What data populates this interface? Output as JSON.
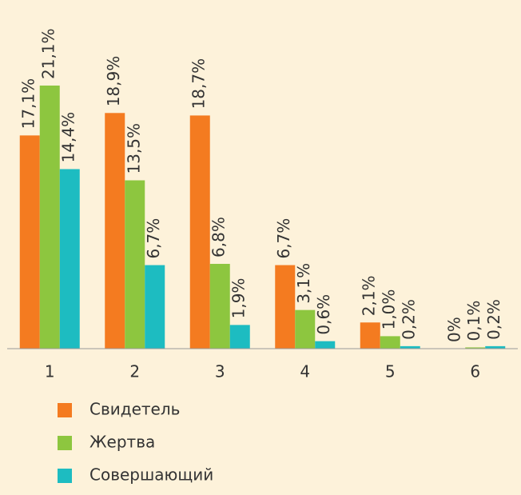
{
  "chart_data": {
    "type": "bar",
    "categories": [
      "1",
      "2",
      "3",
      "4",
      "5",
      "6"
    ],
    "series": [
      {
        "name": "Свидетель",
        "color": "#f47b20",
        "values": [
          17.1,
          18.9,
          18.7,
          6.7,
          2.1,
          0
        ],
        "value_labels": [
          "17,1%",
          "18,9%",
          "18,7%",
          "6,7%",
          "2,1%",
          "0%"
        ]
      },
      {
        "name": "Жертва",
        "color": "#8dc63f",
        "values": [
          21.1,
          13.5,
          6.8,
          3.1,
          1.0,
          0.1
        ],
        "value_labels": [
          "21,1%",
          "13,5%",
          "6,8%",
          "3,1%",
          "1,0%",
          "0,1%"
        ]
      },
      {
        "name": "Совершающий",
        "color": "#1dbcc1",
        "values": [
          14.4,
          6.7,
          1.9,
          0.6,
          0.2,
          0.2
        ],
        "value_labels": [
          "14,4%",
          "6,7%",
          "1,9%",
          "0,6%",
          "0,2%",
          "0,2%"
        ]
      }
    ],
    "ylim": [
      0,
      27
    ],
    "legend": "bottom-left"
  }
}
